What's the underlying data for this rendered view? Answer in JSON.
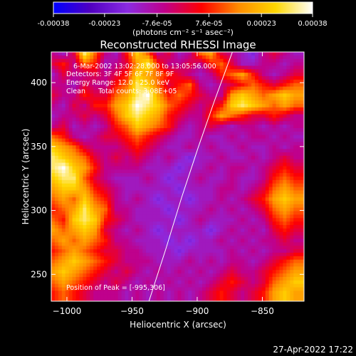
{
  "chart_data": {
    "type": "heatmap",
    "title": "Reconstructed RHESSI Image",
    "xlabel": "Heliocentric X (arcsec)",
    "ylabel": "Heliocentric Y (arcsec)",
    "xlim": [
      -1012,
      -818
    ],
    "ylim": [
      229,
      424
    ],
    "x_ticks": [
      -1000,
      -950,
      -900,
      -850
    ],
    "x_tick_labels": [
      "−1000",
      "−950",
      "−900",
      "−850"
    ],
    "y_ticks": [
      250,
      300,
      350,
      400
    ],
    "y_tick_labels": [
      "250",
      "300",
      "350",
      "400"
    ],
    "colorbar": {
      "range": [
        -0.00038,
        0.00038
      ],
      "ticks": [
        -0.00038,
        -0.00023,
        -7.6e-05,
        7.6e-05,
        0.00023,
        0.00038
      ],
      "tick_labels": [
        "-0.00038",
        "-0.00023",
        "-7.6e-05",
        "7.6e-05",
        "0.00023",
        "0.00038"
      ],
      "unit_label": "(photons cm⁻² s⁻¹ asec⁻²)",
      "colors": [
        "#0000ff",
        "#5000c0",
        "#8a2be2",
        "#c0008a",
        "#ff0000",
        "#ff8c00",
        "#ffd700",
        "#ffffff"
      ]
    },
    "annotations": {
      "time": "6-Mar-2002 13:02:28.000 to 13:05:56.000",
      "detectors": "Detectors: 3F 4F 5F 6F 7F 8F 9F",
      "energy": "Energy Range: 12.0 - 25.0 keV",
      "clean": "Clean      Total counts: 3.08E+05",
      "peak": "Position of Peak = [-995,306]"
    },
    "limb_line": {
      "points": [
        [
          -937,
          229
        ],
        [
          -924,
          270
        ],
        [
          -912,
          310
        ],
        [
          -899,
          350
        ],
        [
          -887,
          385
        ],
        [
          -873,
          424
        ]
      ]
    },
    "intensity_grid": {
      "comment_free_note_omitted": true,
      "nx": 24,
      "ny": 24,
      "values": [
        [
          0.3,
          0.2,
          0.4,
          0.9,
          0.6,
          0.3,
          0.2,
          0.5,
          0.8,
          0.6,
          0.3,
          0.4,
          0.2,
          0.3,
          0.6,
          0.7,
          0.4,
          0.3,
          0.2,
          0.1,
          0.3,
          0.4,
          0.3,
          0.2
        ],
        [
          0.4,
          0.5,
          0.3,
          0.6,
          0.5,
          0.2,
          0.3,
          0.4,
          0.7,
          0.9,
          0.5,
          0.3,
          0.3,
          0.4,
          0.3,
          0.5,
          0.6,
          0.4,
          0.2,
          0.2,
          0.3,
          0.3,
          0.2,
          0.3
        ],
        [
          0.2,
          0.4,
          0.3,
          0.3,
          0.4,
          0.3,
          0.4,
          0.5,
          0.8,
          0.7,
          0.6,
          0.5,
          0.4,
          0.3,
          0.2,
          0.3,
          0.5,
          0.6,
          0.7,
          0.5,
          0.3,
          0.2,
          0.3,
          0.4
        ],
        [
          0.3,
          0.3,
          0.2,
          0.4,
          0.3,
          0.3,
          0.5,
          0.6,
          0.9,
          0.8,
          0.6,
          0.4,
          0.5,
          0.6,
          0.3,
          0.2,
          0.3,
          0.4,
          0.5,
          0.6,
          0.5,
          0.4,
          0.5,
          0.6
        ],
        [
          0.4,
          0.3,
          0.3,
          0.5,
          0.4,
          0.4,
          0.6,
          0.7,
          0.9,
          1.0,
          0.7,
          0.5,
          0.6,
          0.5,
          0.4,
          0.3,
          0.3,
          0.7,
          0.8,
          0.7,
          0.6,
          0.7,
          0.8,
          0.7
        ],
        [
          0.3,
          0.2,
          0.4,
          0.3,
          0.5,
          0.5,
          0.7,
          0.8,
          1.0,
          0.9,
          0.8,
          0.6,
          0.5,
          0.4,
          0.3,
          0.4,
          0.5,
          0.8,
          0.9,
          0.8,
          0.7,
          0.6,
          0.7,
          0.6
        ],
        [
          0.2,
          0.3,
          0.3,
          0.4,
          0.3,
          0.4,
          0.6,
          0.8,
          0.9,
          0.8,
          0.7,
          0.5,
          0.4,
          0.3,
          0.3,
          0.5,
          0.7,
          0.6,
          0.5,
          0.4,
          0.4,
          0.5,
          0.4,
          0.3
        ],
        [
          0.3,
          0.4,
          0.2,
          0.3,
          0.2,
          0.3,
          0.5,
          0.6,
          0.8,
          0.7,
          0.6,
          0.5,
          0.3,
          0.2,
          0.3,
          0.4,
          0.3,
          0.2,
          0.3,
          0.3,
          0.2,
          0.3,
          0.2,
          0.3
        ],
        [
          0.6,
          0.5,
          0.3,
          0.2,
          0.3,
          0.4,
          0.4,
          0.5,
          0.6,
          0.5,
          0.4,
          0.3,
          0.2,
          0.2,
          0.3,
          0.2,
          0.2,
          0.3,
          0.2,
          0.3,
          0.3,
          0.2,
          0.3,
          0.2
        ],
        [
          0.8,
          0.7,
          0.6,
          0.4,
          0.3,
          0.3,
          0.3,
          0.4,
          0.5,
          0.4,
          0.3,
          0.2,
          0.2,
          0.3,
          0.2,
          0.3,
          0.2,
          0.2,
          0.3,
          0.2,
          0.2,
          0.3,
          0.2,
          0.3
        ],
        [
          0.9,
          0.8,
          0.7,
          0.6,
          0.4,
          0.3,
          0.4,
          0.3,
          0.4,
          0.3,
          0.2,
          0.3,
          0.2,
          0.1,
          0.2,
          0.2,
          0.3,
          0.2,
          0.2,
          0.3,
          0.2,
          0.3,
          0.4,
          0.3
        ],
        [
          0.9,
          1.0,
          0.8,
          0.7,
          0.5,
          0.3,
          0.3,
          0.3,
          0.3,
          0.2,
          0.2,
          0.2,
          0.1,
          0.2,
          0.2,
          0.3,
          0.2,
          0.3,
          0.3,
          0.2,
          0.3,
          0.4,
          0.5,
          0.4
        ],
        [
          0.8,
          0.9,
          0.9,
          0.6,
          0.4,
          0.3,
          0.2,
          0.2,
          0.2,
          0.3,
          0.2,
          0.1,
          0.2,
          0.2,
          0.3,
          0.2,
          0.2,
          0.3,
          0.2,
          0.2,
          0.3,
          0.5,
          0.6,
          0.5
        ],
        [
          0.7,
          0.8,
          0.8,
          0.7,
          0.5,
          0.4,
          0.3,
          0.2,
          0.2,
          0.2,
          0.2,
          0.2,
          0.1,
          0.2,
          0.2,
          0.2,
          0.3,
          0.3,
          0.2,
          0.3,
          0.4,
          0.6,
          0.7,
          0.6
        ],
        [
          0.6,
          0.7,
          0.6,
          0.8,
          0.6,
          0.5,
          0.3,
          0.2,
          0.3,
          0.2,
          0.1,
          0.2,
          0.2,
          0.1,
          0.2,
          0.2,
          0.3,
          0.2,
          0.3,
          0.4,
          0.5,
          0.7,
          0.8,
          0.7
        ],
        [
          0.5,
          0.6,
          0.7,
          0.9,
          0.7,
          0.6,
          0.3,
          0.3,
          0.2,
          0.2,
          0.2,
          0.1,
          0.2,
          0.2,
          0.2,
          0.3,
          0.2,
          0.3,
          0.2,
          0.3,
          0.4,
          0.6,
          0.7,
          0.6
        ],
        [
          0.6,
          0.5,
          0.8,
          0.9,
          0.8,
          0.5,
          0.4,
          0.3,
          0.2,
          0.2,
          0.2,
          0.2,
          0.1,
          0.2,
          0.3,
          0.2,
          0.2,
          0.2,
          0.3,
          0.2,
          0.3,
          0.5,
          0.6,
          0.5
        ],
        [
          0.7,
          0.6,
          0.7,
          0.8,
          0.7,
          0.4,
          0.3,
          0.2,
          0.3,
          0.2,
          0.1,
          0.2,
          0.2,
          0.2,
          0.2,
          0.1,
          0.2,
          0.3,
          0.2,
          0.3,
          0.2,
          0.4,
          0.5,
          0.4
        ],
        [
          0.6,
          0.7,
          0.6,
          0.7,
          0.6,
          0.5,
          0.3,
          0.3,
          0.2,
          0.2,
          0.2,
          0.1,
          0.2,
          0.1,
          0.2,
          0.2,
          0.3,
          0.2,
          0.3,
          0.2,
          0.3,
          0.3,
          0.4,
          0.3
        ],
        [
          0.5,
          0.6,
          0.7,
          0.6,
          0.5,
          0.4,
          0.4,
          0.3,
          0.3,
          0.2,
          0.2,
          0.2,
          0.1,
          0.2,
          0.2,
          0.2,
          0.2,
          0.3,
          0.2,
          0.3,
          0.2,
          0.3,
          0.3,
          0.4
        ],
        [
          0.6,
          0.7,
          0.8,
          0.7,
          0.6,
          0.5,
          0.4,
          0.3,
          0.3,
          0.3,
          0.2,
          0.2,
          0.2,
          0.3,
          0.2,
          0.3,
          0.2,
          0.3,
          0.3,
          0.2,
          0.3,
          0.4,
          0.5,
          0.6
        ],
        [
          0.7,
          0.8,
          0.7,
          0.6,
          0.5,
          0.4,
          0.3,
          0.4,
          0.3,
          0.2,
          0.3,
          0.2,
          0.3,
          0.2,
          0.3,
          0.2,
          0.3,
          0.4,
          0.3,
          0.3,
          0.4,
          0.5,
          0.6,
          0.7
        ],
        [
          0.6,
          0.7,
          0.6,
          0.5,
          0.4,
          0.3,
          0.4,
          0.3,
          0.2,
          0.3,
          0.2,
          0.3,
          0.2,
          0.3,
          0.2,
          0.3,
          0.4,
          0.5,
          0.4,
          0.3,
          0.4,
          0.6,
          0.7,
          0.8
        ],
        [
          0.5,
          0.6,
          0.5,
          0.4,
          0.3,
          0.3,
          0.3,
          0.2,
          0.3,
          0.2,
          0.3,
          0.2,
          0.3,
          0.2,
          0.3,
          0.4,
          0.5,
          0.4,
          0.3,
          0.4,
          0.5,
          0.7,
          0.8,
          0.7
        ]
      ]
    }
  },
  "footer": {
    "timestamp": "27-Apr-2022 17:22"
  }
}
